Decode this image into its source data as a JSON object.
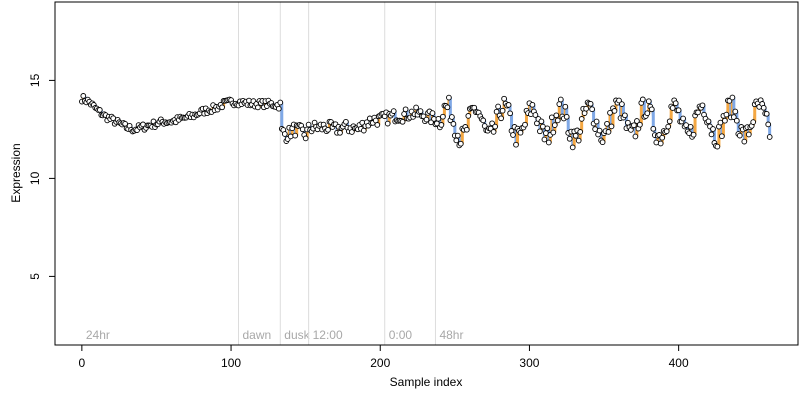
{
  "chart_data": {
    "type": "scatter",
    "title": "",
    "xlabel": "Sample index",
    "ylabel": "Expression",
    "xlim": [
      -18,
      480
    ],
    "ylim": [
      1.5,
      19
    ],
    "x_ticks": [
      0,
      100,
      200,
      300,
      400
    ],
    "y_ticks": [
      5,
      10,
      15
    ],
    "grid": false,
    "colors": {
      "point_fill": "#ffffff",
      "point_stroke": "#000000",
      "up_segment": "#f4a742",
      "down_segment": "#7fa8e6",
      "trace": "#9a9a9a",
      "phase_line": "#dcdcdc",
      "phase_label": "#a8a8a8"
    },
    "phase_markers": [
      {
        "x": 0,
        "label": "24hr",
        "line": false
      },
      {
        "x": 105,
        "label": "dawn",
        "line": true
      },
      {
        "x": 133,
        "label": "dusk",
        "line": true
      },
      {
        "x": 152,
        "label": "12:00",
        "line": true
      },
      {
        "x": 203,
        "label": "0:00",
        "line": true
      },
      {
        "x": 237,
        "label": "48hr",
        "line": true
      }
    ],
    "anchors": [
      [
        0,
        14.1
      ],
      [
        5,
        13.9
      ],
      [
        10,
        13.5
      ],
      [
        15,
        13.2
      ],
      [
        20,
        13.0
      ],
      [
        25,
        12.8
      ],
      [
        30,
        12.6
      ],
      [
        35,
        12.5
      ],
      [
        40,
        12.6
      ],
      [
        45,
        12.7
      ],
      [
        50,
        12.8
      ],
      [
        55,
        12.9
      ],
      [
        60,
        12.9
      ],
      [
        65,
        13.0
      ],
      [
        70,
        13.1
      ],
      [
        75,
        13.2
      ],
      [
        80,
        13.4
      ],
      [
        85,
        13.5
      ],
      [
        90,
        13.6
      ],
      [
        95,
        13.8
      ],
      [
        100,
        13.9
      ],
      [
        105,
        13.9
      ],
      [
        110,
        13.85
      ],
      [
        115,
        13.8
      ],
      [
        120,
        13.8
      ],
      [
        125,
        13.8
      ],
      [
        130,
        13.75
      ],
      [
        133,
        13.7
      ],
      [
        134,
        12.4
      ],
      [
        137,
        12.2
      ],
      [
        142,
        12.5
      ],
      [
        147,
        12.4
      ],
      [
        150,
        12.2
      ],
      [
        152,
        12.5
      ],
      [
        155,
        12.6
      ],
      [
        160,
        12.6
      ],
      [
        165,
        12.6
      ],
      [
        170,
        12.5
      ],
      [
        175,
        12.6
      ],
      [
        180,
        12.6
      ],
      [
        185,
        12.5
      ],
      [
        190,
        12.8
      ],
      [
        195,
        13.0
      ],
      [
        200,
        13.0
      ],
      [
        205,
        13.1
      ],
      [
        210,
        13.2
      ],
      [
        215,
        13.2
      ],
      [
        220,
        13.3
      ],
      [
        225,
        13.3
      ],
      [
        230,
        13.2
      ],
      [
        237,
        13.0
      ],
      [
        245,
        12.9
      ],
      [
        255,
        12.8
      ],
      [
        265,
        12.8
      ],
      [
        275,
        12.9
      ],
      [
        285,
        12.9
      ],
      [
        295,
        12.8
      ],
      [
        305,
        12.8
      ],
      [
        315,
        12.9
      ],
      [
        325,
        12.8
      ],
      [
        335,
        12.8
      ],
      [
        345,
        12.9
      ],
      [
        355,
        12.9
      ],
      [
        365,
        13.0
      ],
      [
        375,
        12.9
      ],
      [
        385,
        12.9
      ],
      [
        395,
        12.9
      ],
      [
        405,
        12.9
      ],
      [
        415,
        13.0
      ],
      [
        425,
        12.9
      ],
      [
        435,
        12.9
      ],
      [
        445,
        12.9
      ],
      [
        455,
        12.9
      ],
      [
        461,
        12.9
      ]
    ],
    "noise_segments": [
      {
        "from": 0,
        "to": 133,
        "amp": 0.18
      },
      {
        "from": 133,
        "to": 240,
        "amp": 0.32
      },
      {
        "from": 240,
        "to": 462,
        "amp": 0.55
      }
    ],
    "oscillation": {
      "from": 240,
      "to": 462,
      "period": 19,
      "amplitude": 0.75
    },
    "n_samples": 462
  }
}
